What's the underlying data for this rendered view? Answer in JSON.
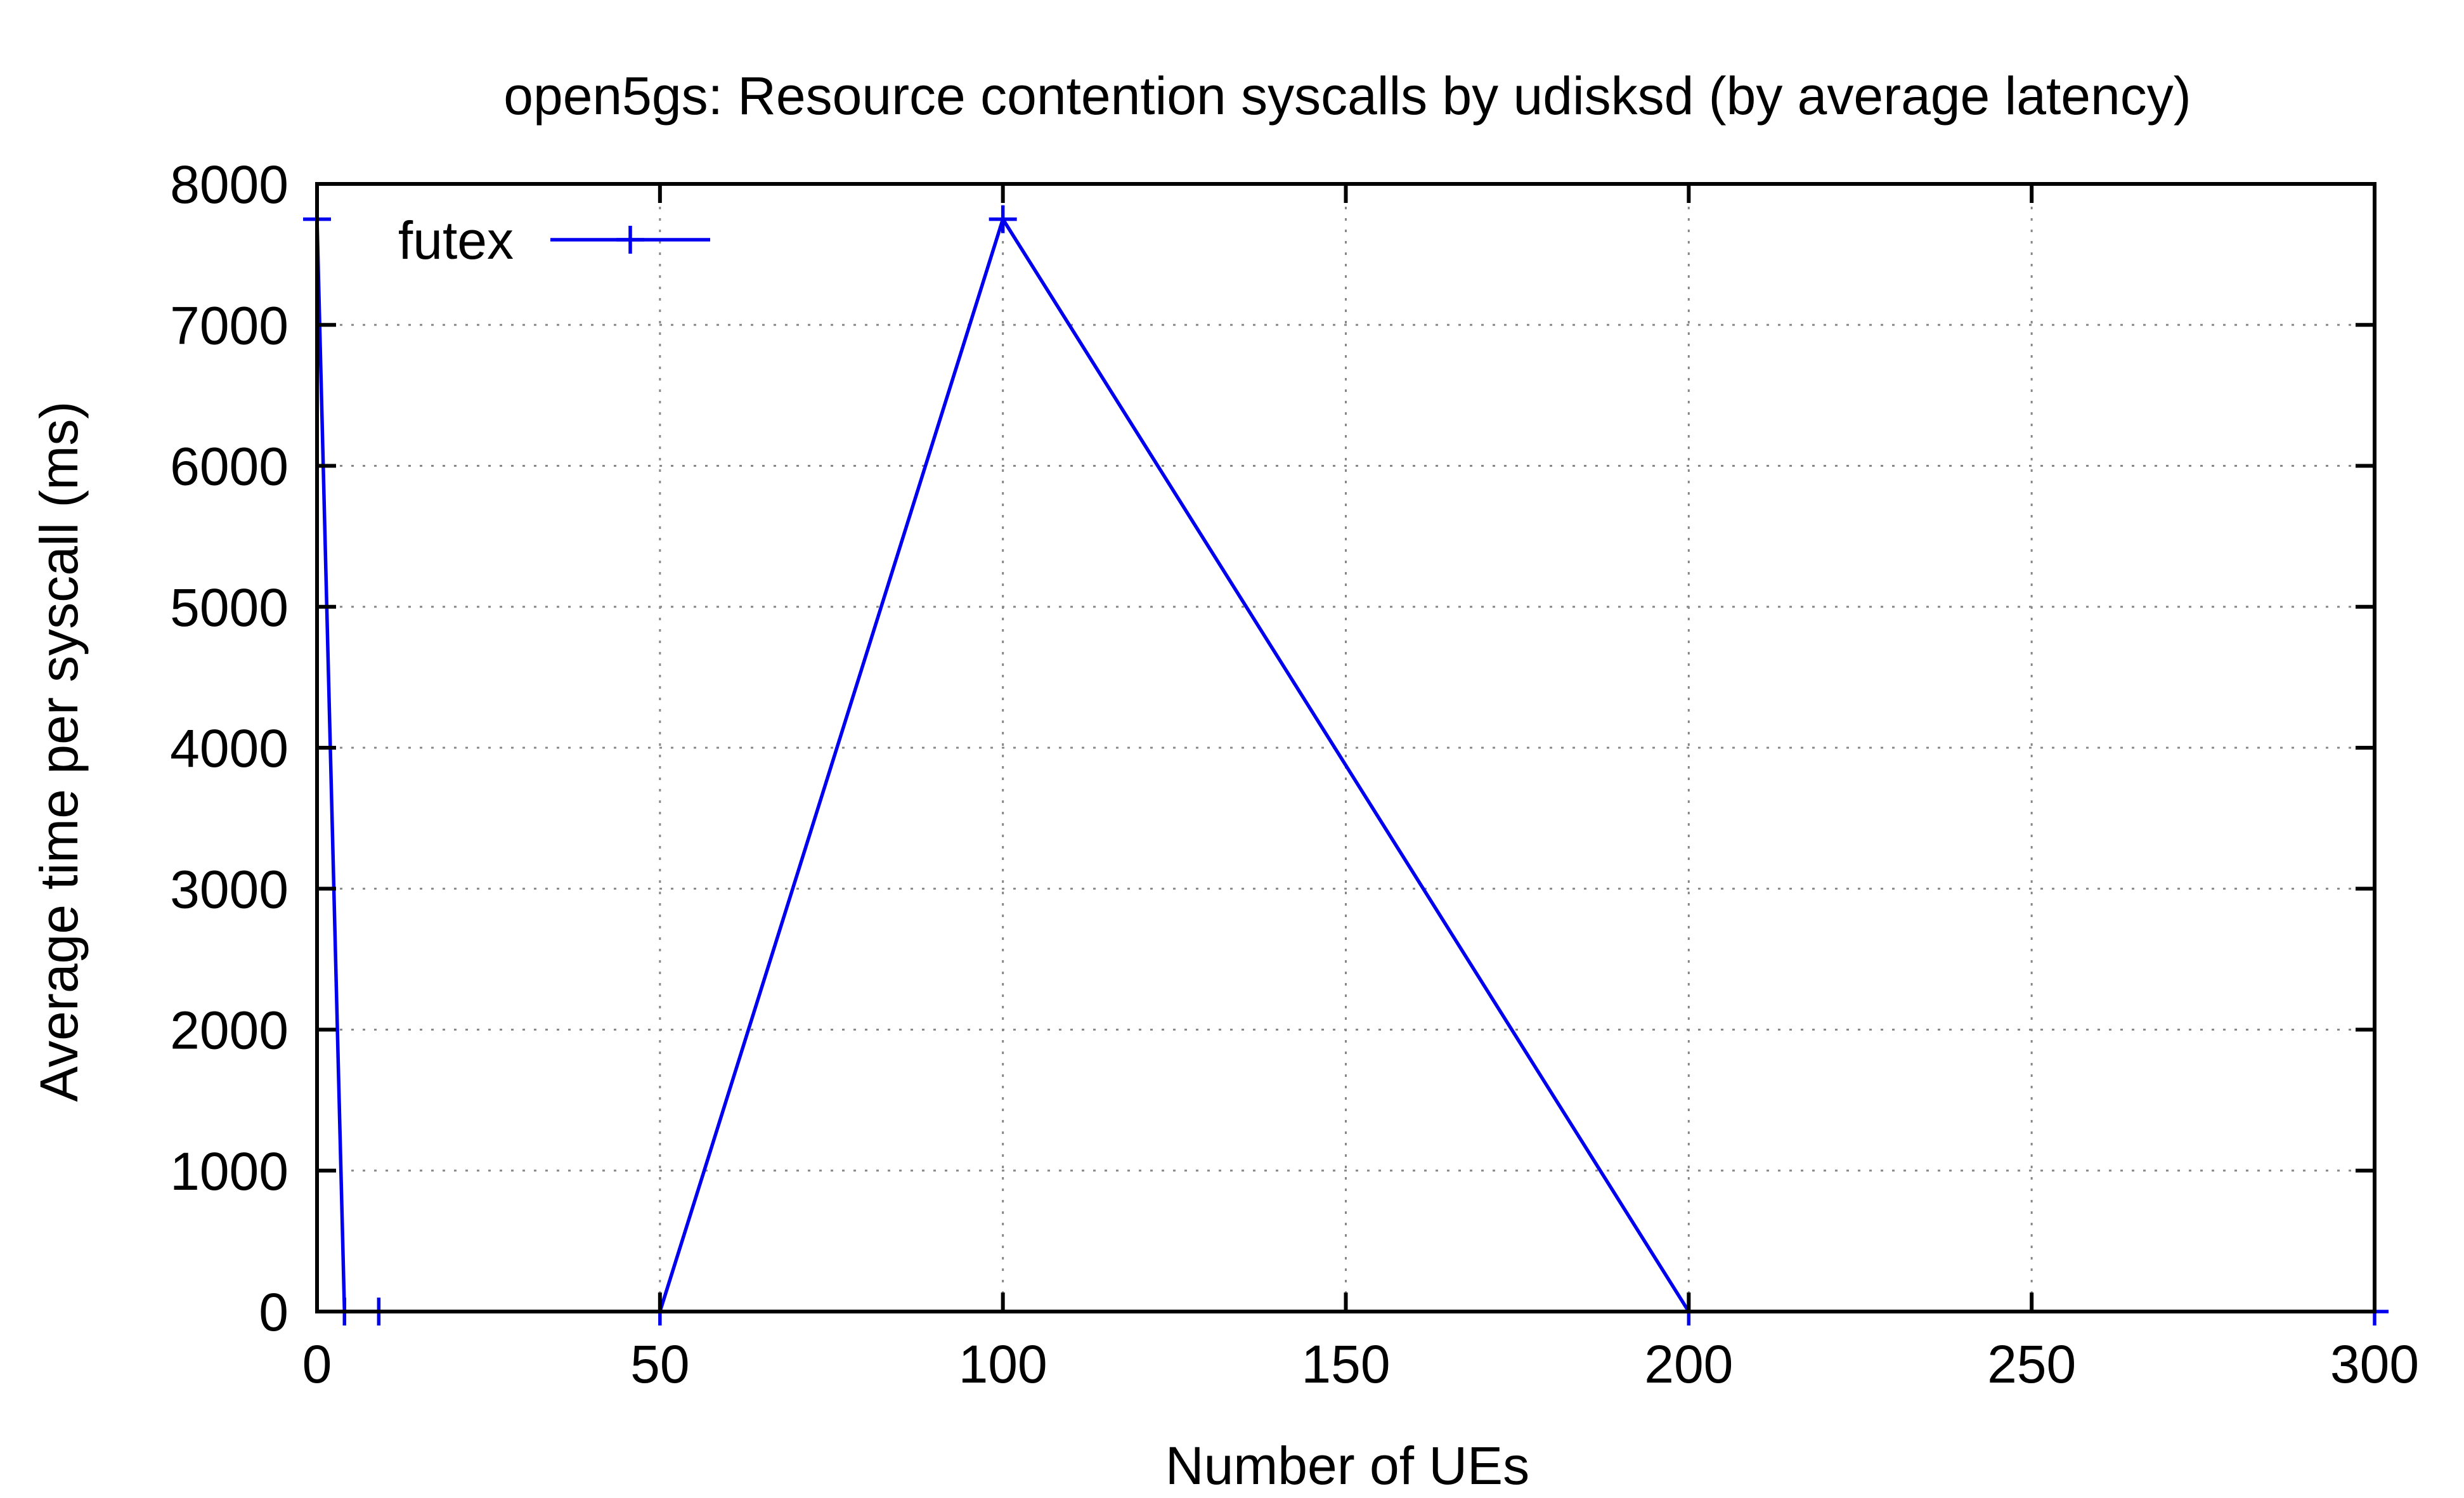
{
  "chart_data": {
    "type": "line",
    "title": "open5gs: Resource contention syscalls by udisksd (by average latency)",
    "xlabel": "Number of UEs",
    "ylabel": "Average time per syscall (ms)",
    "xlim": [
      0,
      300
    ],
    "ylim": [
      0,
      8000
    ],
    "xticks": [
      0,
      50,
      100,
      150,
      200,
      250,
      300
    ],
    "yticks": [
      0,
      1000,
      2000,
      3000,
      4000,
      5000,
      6000,
      7000,
      8000
    ],
    "xtick_labels": [
      "0",
      "50",
      "100",
      "150",
      "200",
      "250",
      "300"
    ],
    "ytick_labels": [
      "0",
      "1000",
      "2000",
      "3000",
      "4000",
      "5000",
      "6000",
      "7000",
      "8000"
    ],
    "grid": true,
    "legend_position": "top-left",
    "series": [
      {
        "name": "futex",
        "color": "#0000ee",
        "marker": "plus",
        "x": [
          0,
          4,
          9,
          50,
          100,
          200,
          300
        ],
        "y": [
          7750,
          0,
          0,
          0,
          7750,
          0,
          0
        ]
      }
    ]
  }
}
